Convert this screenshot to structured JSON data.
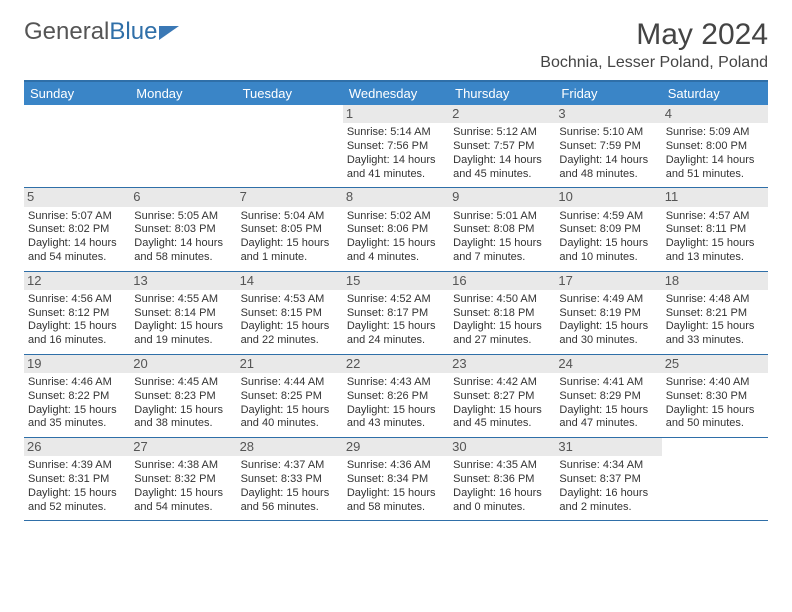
{
  "logo": {
    "text1": "General",
    "text2": "Blue"
  },
  "title": "May 2024",
  "subtitle": "Bochnia, Lesser Poland, Poland",
  "colors": {
    "header_bg": "#3a85c7",
    "header_text": "#ffffff",
    "border": "#2f6fa8",
    "daynum_bg": "#e9e9e9",
    "text": "#333333"
  },
  "typography": {
    "title_fontsize": 30,
    "subtitle_fontsize": 16,
    "header_fontsize": 13,
    "cell_fontsize": 11
  },
  "days": [
    "Sunday",
    "Monday",
    "Tuesday",
    "Wednesday",
    "Thursday",
    "Friday",
    "Saturday"
  ],
  "weeks": [
    [
      {
        "n": "",
        "lines": []
      },
      {
        "n": "",
        "lines": []
      },
      {
        "n": "",
        "lines": []
      },
      {
        "n": "1",
        "lines": [
          "Sunrise: 5:14 AM",
          "Sunset: 7:56 PM",
          "Daylight: 14 hours",
          "and 41 minutes."
        ]
      },
      {
        "n": "2",
        "lines": [
          "Sunrise: 5:12 AM",
          "Sunset: 7:57 PM",
          "Daylight: 14 hours",
          "and 45 minutes."
        ]
      },
      {
        "n": "3",
        "lines": [
          "Sunrise: 5:10 AM",
          "Sunset: 7:59 PM",
          "Daylight: 14 hours",
          "and 48 minutes."
        ]
      },
      {
        "n": "4",
        "lines": [
          "Sunrise: 5:09 AM",
          "Sunset: 8:00 PM",
          "Daylight: 14 hours",
          "and 51 minutes."
        ]
      }
    ],
    [
      {
        "n": "5",
        "lines": [
          "Sunrise: 5:07 AM",
          "Sunset: 8:02 PM",
          "Daylight: 14 hours",
          "and 54 minutes."
        ]
      },
      {
        "n": "6",
        "lines": [
          "Sunrise: 5:05 AM",
          "Sunset: 8:03 PM",
          "Daylight: 14 hours",
          "and 58 minutes."
        ]
      },
      {
        "n": "7",
        "lines": [
          "Sunrise: 5:04 AM",
          "Sunset: 8:05 PM",
          "Daylight: 15 hours",
          "and 1 minute."
        ]
      },
      {
        "n": "8",
        "lines": [
          "Sunrise: 5:02 AM",
          "Sunset: 8:06 PM",
          "Daylight: 15 hours",
          "and 4 minutes."
        ]
      },
      {
        "n": "9",
        "lines": [
          "Sunrise: 5:01 AM",
          "Sunset: 8:08 PM",
          "Daylight: 15 hours",
          "and 7 minutes."
        ]
      },
      {
        "n": "10",
        "lines": [
          "Sunrise: 4:59 AM",
          "Sunset: 8:09 PM",
          "Daylight: 15 hours",
          "and 10 minutes."
        ]
      },
      {
        "n": "11",
        "lines": [
          "Sunrise: 4:57 AM",
          "Sunset: 8:11 PM",
          "Daylight: 15 hours",
          "and 13 minutes."
        ]
      }
    ],
    [
      {
        "n": "12",
        "lines": [
          "Sunrise: 4:56 AM",
          "Sunset: 8:12 PM",
          "Daylight: 15 hours",
          "and 16 minutes."
        ]
      },
      {
        "n": "13",
        "lines": [
          "Sunrise: 4:55 AM",
          "Sunset: 8:14 PM",
          "Daylight: 15 hours",
          "and 19 minutes."
        ]
      },
      {
        "n": "14",
        "lines": [
          "Sunrise: 4:53 AM",
          "Sunset: 8:15 PM",
          "Daylight: 15 hours",
          "and 22 minutes."
        ]
      },
      {
        "n": "15",
        "lines": [
          "Sunrise: 4:52 AM",
          "Sunset: 8:17 PM",
          "Daylight: 15 hours",
          "and 24 minutes."
        ]
      },
      {
        "n": "16",
        "lines": [
          "Sunrise: 4:50 AM",
          "Sunset: 8:18 PM",
          "Daylight: 15 hours",
          "and 27 minutes."
        ]
      },
      {
        "n": "17",
        "lines": [
          "Sunrise: 4:49 AM",
          "Sunset: 8:19 PM",
          "Daylight: 15 hours",
          "and 30 minutes."
        ]
      },
      {
        "n": "18",
        "lines": [
          "Sunrise: 4:48 AM",
          "Sunset: 8:21 PM",
          "Daylight: 15 hours",
          "and 33 minutes."
        ]
      }
    ],
    [
      {
        "n": "19",
        "lines": [
          "Sunrise: 4:46 AM",
          "Sunset: 8:22 PM",
          "Daylight: 15 hours",
          "and 35 minutes."
        ]
      },
      {
        "n": "20",
        "lines": [
          "Sunrise: 4:45 AM",
          "Sunset: 8:23 PM",
          "Daylight: 15 hours",
          "and 38 minutes."
        ]
      },
      {
        "n": "21",
        "lines": [
          "Sunrise: 4:44 AM",
          "Sunset: 8:25 PM",
          "Daylight: 15 hours",
          "and 40 minutes."
        ]
      },
      {
        "n": "22",
        "lines": [
          "Sunrise: 4:43 AM",
          "Sunset: 8:26 PM",
          "Daylight: 15 hours",
          "and 43 minutes."
        ]
      },
      {
        "n": "23",
        "lines": [
          "Sunrise: 4:42 AM",
          "Sunset: 8:27 PM",
          "Daylight: 15 hours",
          "and 45 minutes."
        ]
      },
      {
        "n": "24",
        "lines": [
          "Sunrise: 4:41 AM",
          "Sunset: 8:29 PM",
          "Daylight: 15 hours",
          "and 47 minutes."
        ]
      },
      {
        "n": "25",
        "lines": [
          "Sunrise: 4:40 AM",
          "Sunset: 8:30 PM",
          "Daylight: 15 hours",
          "and 50 minutes."
        ]
      }
    ],
    [
      {
        "n": "26",
        "lines": [
          "Sunrise: 4:39 AM",
          "Sunset: 8:31 PM",
          "Daylight: 15 hours",
          "and 52 minutes."
        ]
      },
      {
        "n": "27",
        "lines": [
          "Sunrise: 4:38 AM",
          "Sunset: 8:32 PM",
          "Daylight: 15 hours",
          "and 54 minutes."
        ]
      },
      {
        "n": "28",
        "lines": [
          "Sunrise: 4:37 AM",
          "Sunset: 8:33 PM",
          "Daylight: 15 hours",
          "and 56 minutes."
        ]
      },
      {
        "n": "29",
        "lines": [
          "Sunrise: 4:36 AM",
          "Sunset: 8:34 PM",
          "Daylight: 15 hours",
          "and 58 minutes."
        ]
      },
      {
        "n": "30",
        "lines": [
          "Sunrise: 4:35 AM",
          "Sunset: 8:36 PM",
          "Daylight: 16 hours",
          "and 0 minutes."
        ]
      },
      {
        "n": "31",
        "lines": [
          "Sunrise: 4:34 AM",
          "Sunset: 8:37 PM",
          "Daylight: 16 hours",
          "and 2 minutes."
        ]
      },
      {
        "n": "",
        "lines": []
      }
    ]
  ]
}
